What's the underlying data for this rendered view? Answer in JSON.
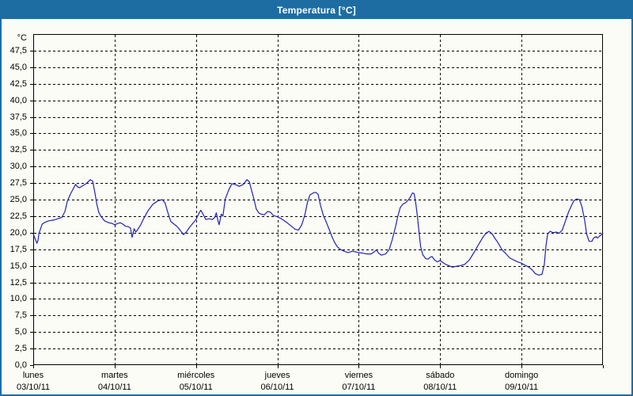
{
  "window": {
    "title": "Temperatura [°C]"
  },
  "colors": {
    "titlebar_bg": "#1d6da3",
    "frame_border": "#1d6da3",
    "title_text": "#ffffff",
    "axis_text": "#000000",
    "grid": "#000000",
    "plot_bg": "#fcfcf6",
    "series_line": "#2222b2"
  },
  "chart_data": {
    "type": "line",
    "title": "Temperatura [°C]",
    "legend": "none",
    "grid": "dashed",
    "xlabel": "",
    "ylabel": "°C",
    "y_axis": {
      "min": 0,
      "max": 50,
      "tick_step": 2.5,
      "unit_label": "°C",
      "ticks": [
        {
          "v": 47.5,
          "label": "47,5"
        },
        {
          "v": 45.0,
          "label": "45,0"
        },
        {
          "v": 42.5,
          "label": "42,5"
        },
        {
          "v": 40.0,
          "label": "40,0"
        },
        {
          "v": 37.5,
          "label": "37,5"
        },
        {
          "v": 35.0,
          "label": "35,0"
        },
        {
          "v": 32.5,
          "label": "32,5"
        },
        {
          "v": 30.0,
          "label": "30,0"
        },
        {
          "v": 27.5,
          "label": "27,5"
        },
        {
          "v": 25.0,
          "label": "25,0"
        },
        {
          "v": 22.5,
          "label": "22,5"
        },
        {
          "v": 20.0,
          "label": "20,0"
        },
        {
          "v": 17.5,
          "label": "17,5"
        },
        {
          "v": 15.0,
          "label": "15,0"
        },
        {
          "v": 12.5,
          "label": "12,5"
        },
        {
          "v": 10.0,
          "label": "10,0"
        },
        {
          "v": 7.5,
          "label": "7,5"
        },
        {
          "v": 5.0,
          "label": "5,0"
        },
        {
          "v": 2.5,
          "label": "2,5"
        },
        {
          "v": 0.0,
          "label": "0,0"
        }
      ]
    },
    "x_axis": {
      "span_days": 7,
      "days": [
        {
          "name": "lunes",
          "date": "03/10/11"
        },
        {
          "name": "martes",
          "date": "04/10/11"
        },
        {
          "name": "miércoles",
          "date": "05/10/11"
        },
        {
          "name": "jueves",
          "date": "06/10/11"
        },
        {
          "name": "viernes",
          "date": "07/10/11"
        },
        {
          "name": "sábado",
          "date": "08/10/11"
        },
        {
          "name": "domingo",
          "date": "09/10/11"
        }
      ]
    },
    "series": [
      {
        "name": "Temperatura",
        "color": "#2222b2",
        "points": [
          [
            0.0,
            19.8
          ],
          [
            0.02,
            19.2
          ],
          [
            0.045,
            18.4
          ],
          [
            0.06,
            18.9
          ],
          [
            0.07,
            19.9
          ],
          [
            0.09,
            20.6
          ],
          [
            0.11,
            21.3
          ],
          [
            0.15,
            21.6
          ],
          [
            0.19,
            21.8
          ],
          [
            0.25,
            21.9
          ],
          [
            0.3,
            22.1
          ],
          [
            0.35,
            22.3
          ],
          [
            0.39,
            23.2
          ],
          [
            0.42,
            24.8
          ],
          [
            0.46,
            25.9
          ],
          [
            0.49,
            26.6
          ],
          [
            0.52,
            27.3
          ],
          [
            0.545,
            26.9
          ],
          [
            0.57,
            26.8
          ],
          [
            0.61,
            27.1
          ],
          [
            0.65,
            27.4
          ],
          [
            0.7,
            28.0
          ],
          [
            0.73,
            27.8
          ],
          [
            0.755,
            26.2
          ],
          [
            0.78,
            24.4
          ],
          [
            0.805,
            23.1
          ],
          [
            0.83,
            22.5
          ],
          [
            0.875,
            21.8
          ],
          [
            0.93,
            21.5
          ],
          [
            0.97,
            21.4
          ],
          [
            1.0,
            21.2
          ],
          [
            1.04,
            21.4
          ],
          [
            1.07,
            21.5
          ],
          [
            1.1,
            21.3
          ],
          [
            1.13,
            21.0
          ],
          [
            1.17,
            20.9
          ],
          [
            1.195,
            20.7
          ],
          [
            1.215,
            19.3
          ],
          [
            1.24,
            20.6
          ],
          [
            1.26,
            20.1
          ],
          [
            1.285,
            20.5
          ],
          [
            1.32,
            21.2
          ],
          [
            1.36,
            22.2
          ],
          [
            1.41,
            23.3
          ],
          [
            1.47,
            24.3
          ],
          [
            1.53,
            24.8
          ],
          [
            1.585,
            25.0
          ],
          [
            1.62,
            24.5
          ],
          [
            1.655,
            23.0
          ],
          [
            1.69,
            21.7
          ],
          [
            1.73,
            21.3
          ],
          [
            1.77,
            20.9
          ],
          [
            1.81,
            20.3
          ],
          [
            1.845,
            19.7
          ],
          [
            1.88,
            20.1
          ],
          [
            1.92,
            20.8
          ],
          [
            1.96,
            21.4
          ],
          [
            2.0,
            22.0
          ],
          [
            2.04,
            23.0
          ],
          [
            2.06,
            23.4
          ],
          [
            2.09,
            22.7
          ],
          [
            2.12,
            22.0
          ],
          [
            2.16,
            22.1
          ],
          [
            2.2,
            22.0
          ],
          [
            2.23,
            22.3
          ],
          [
            2.25,
            23.0
          ],
          [
            2.27,
            21.8
          ],
          [
            2.285,
            21.2
          ],
          [
            2.31,
            22.8
          ],
          [
            2.33,
            22.5
          ],
          [
            2.36,
            25.1
          ],
          [
            2.4,
            26.4
          ],
          [
            2.44,
            27.4
          ],
          [
            2.47,
            27.3
          ],
          [
            2.5,
            27.2
          ],
          [
            2.53,
            27.0
          ],
          [
            2.57,
            27.2
          ],
          [
            2.59,
            27.4
          ],
          [
            2.625,
            28.0
          ],
          [
            2.655,
            27.7
          ],
          [
            2.68,
            26.5
          ],
          [
            2.71,
            25.2
          ],
          [
            2.74,
            23.6
          ],
          [
            2.77,
            23.0
          ],
          [
            2.8,
            22.8
          ],
          [
            2.84,
            22.7
          ],
          [
            2.88,
            23.2
          ],
          [
            2.915,
            23.1
          ],
          [
            2.95,
            22.6
          ],
          [
            3.0,
            22.4
          ],
          [
            3.05,
            22.1
          ],
          [
            3.12,
            21.5
          ],
          [
            3.18,
            20.9
          ],
          [
            3.22,
            20.5
          ],
          [
            3.26,
            20.4
          ],
          [
            3.3,
            21.2
          ],
          [
            3.34,
            22.8
          ],
          [
            3.37,
            24.6
          ],
          [
            3.4,
            25.7
          ],
          [
            3.44,
            26.0
          ],
          [
            3.47,
            26.1
          ],
          [
            3.5,
            25.8
          ],
          [
            3.53,
            24.1
          ],
          [
            3.565,
            22.6
          ],
          [
            3.6,
            21.6
          ],
          [
            3.64,
            20.4
          ],
          [
            3.67,
            19.4
          ],
          [
            3.7,
            18.6
          ],
          [
            3.735,
            17.9
          ],
          [
            3.77,
            17.5
          ],
          [
            3.82,
            17.2
          ],
          [
            3.87,
            17.0
          ],
          [
            3.92,
            17.2
          ],
          [
            3.96,
            17.1
          ],
          [
            4.0,
            17.0
          ],
          [
            4.05,
            16.9
          ],
          [
            4.1,
            16.8
          ],
          [
            4.15,
            16.8
          ],
          [
            4.19,
            17.1
          ],
          [
            4.215,
            17.4
          ],
          [
            4.245,
            16.9
          ],
          [
            4.28,
            16.6
          ],
          [
            4.33,
            16.8
          ],
          [
            4.375,
            17.5
          ],
          [
            4.41,
            18.9
          ],
          [
            4.45,
            20.8
          ],
          [
            4.48,
            22.5
          ],
          [
            4.51,
            23.8
          ],
          [
            4.54,
            24.3
          ],
          [
            4.57,
            24.5
          ],
          [
            4.6,
            24.8
          ],
          [
            4.63,
            25.3
          ],
          [
            4.66,
            26.0
          ],
          [
            4.68,
            25.9
          ],
          [
            4.7,
            24.5
          ],
          [
            4.72,
            22.5
          ],
          [
            4.74,
            20.2
          ],
          [
            4.76,
            17.9
          ],
          [
            4.785,
            16.7
          ],
          [
            4.82,
            16.1
          ],
          [
            4.85,
            16.0
          ],
          [
            4.88,
            16.3
          ],
          [
            4.9,
            16.4
          ],
          [
            4.93,
            15.9
          ],
          [
            4.965,
            15.6
          ],
          [
            5.0,
            15.8
          ],
          [
            5.03,
            15.5
          ],
          [
            5.07,
            15.2
          ],
          [
            5.11,
            15.0
          ],
          [
            5.15,
            14.8
          ],
          [
            5.19,
            14.9
          ],
          [
            5.24,
            15.0
          ],
          [
            5.3,
            15.2
          ],
          [
            5.36,
            15.9
          ],
          [
            5.42,
            17.1
          ],
          [
            5.48,
            18.4
          ],
          [
            5.53,
            19.4
          ],
          [
            5.57,
            20.0
          ],
          [
            5.6,
            20.2
          ],
          [
            5.64,
            19.8
          ],
          [
            5.67,
            19.2
          ],
          [
            5.71,
            18.5
          ],
          [
            5.76,
            17.4
          ],
          [
            5.81,
            16.8
          ],
          [
            5.855,
            16.2
          ],
          [
            5.9,
            15.9
          ],
          [
            5.95,
            15.6
          ],
          [
            6.0,
            15.4
          ],
          [
            6.04,
            15.1
          ],
          [
            6.09,
            14.8
          ],
          [
            6.13,
            14.4
          ],
          [
            6.17,
            13.8
          ],
          [
            6.21,
            13.6
          ],
          [
            6.25,
            13.7
          ],
          [
            6.28,
            15.2
          ],
          [
            6.3,
            18.0
          ],
          [
            6.32,
            19.8
          ],
          [
            6.35,
            20.2
          ],
          [
            6.39,
            20.0
          ],
          [
            6.43,
            20.1
          ],
          [
            6.46,
            19.9
          ],
          [
            6.5,
            20.4
          ],
          [
            6.54,
            21.8
          ],
          [
            6.58,
            23.2
          ],
          [
            6.61,
            24.0
          ],
          [
            6.64,
            24.8
          ],
          [
            6.675,
            25.1
          ],
          [
            6.71,
            25.0
          ],
          [
            6.74,
            24.0
          ],
          [
            6.775,
            21.9
          ],
          [
            6.8,
            19.8
          ],
          [
            6.83,
            18.7
          ],
          [
            6.865,
            18.7
          ],
          [
            6.885,
            19.2
          ],
          [
            6.915,
            19.4
          ],
          [
            6.935,
            19.2
          ],
          [
            6.96,
            19.5
          ],
          [
            7.0,
            19.9
          ]
        ]
      }
    ]
  }
}
